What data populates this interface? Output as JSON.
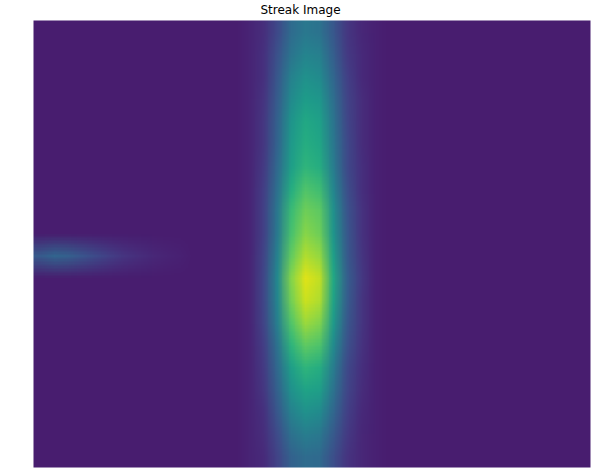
{
  "chart_data": {
    "type": "heatmap",
    "title": "Streak Image",
    "color": "viridis",
    "tick_labels": false,
    "zlim": [
      0,
      100
    ],
    "cells": [
      [
        8,
        8,
        8,
        8,
        8,
        8,
        8,
        8,
        8,
        8,
        8,
        8,
        8,
        8,
        8,
        10,
        13,
        22,
        35,
        40,
        38,
        27,
        16,
        11,
        9,
        8,
        8,
        8,
        8,
        8,
        8,
        8,
        8,
        8,
        8,
        8,
        8,
        8,
        8,
        8
      ],
      [
        8,
        8,
        8,
        8,
        8,
        8,
        8,
        8,
        8,
        8,
        8,
        8,
        8,
        8,
        8,
        10,
        14,
        25,
        39,
        45,
        43,
        30,
        17,
        12,
        9,
        8,
        8,
        8,
        8,
        8,
        8,
        8,
        8,
        8,
        8,
        8,
        8,
        8,
        8,
        8
      ],
      [
        8,
        8,
        8,
        8,
        8,
        8,
        8,
        8,
        8,
        8,
        8,
        8,
        8,
        8,
        8,
        10,
        14,
        27,
        44,
        50,
        48,
        33,
        19,
        12,
        9,
        8,
        8,
        8,
        8,
        8,
        8,
        8,
        8,
        8,
        8,
        8,
        8,
        8,
        8,
        8
      ],
      [
        8,
        8,
        8,
        8,
        8,
        8,
        8,
        8,
        8,
        8,
        8,
        8,
        8,
        8,
        8,
        10,
        15,
        29,
        48,
        55,
        53,
        36,
        20,
        13,
        9,
        8,
        8,
        8,
        8,
        8,
        8,
        8,
        8,
        8,
        8,
        8,
        8,
        8,
        8,
        8
      ],
      [
        8,
        8,
        8,
        8,
        8,
        8,
        8,
        8,
        8,
        8,
        8,
        8,
        8,
        8,
        8,
        10,
        16,
        31,
        52,
        60,
        57,
        39,
        21,
        13,
        9,
        8,
        8,
        8,
        8,
        8,
        8,
        8,
        8,
        8,
        8,
        8,
        8,
        8,
        8,
        8
      ],
      [
        8,
        8,
        8,
        8,
        8,
        8,
        8,
        8,
        8,
        8,
        8,
        8,
        8,
        8,
        8,
        10,
        16,
        32,
        54,
        62,
        59,
        40,
        22,
        13,
        9,
        8,
        8,
        8,
        8,
        8,
        8,
        8,
        8,
        8,
        8,
        8,
        8,
        8,
        8,
        8
      ],
      [
        8,
        8,
        8,
        8,
        8,
        8,
        8,
        8,
        8,
        8,
        8,
        8,
        8,
        8,
        8,
        10,
        17,
        34,
        56,
        65,
        62,
        42,
        22,
        14,
        9,
        8,
        8,
        8,
        8,
        8,
        8,
        8,
        8,
        8,
        8,
        8,
        8,
        8,
        8,
        8
      ],
      [
        8,
        8,
        8,
        8,
        8,
        8,
        8,
        8,
        8,
        8,
        8,
        8,
        8,
        8,
        8,
        10,
        18,
        37,
        62,
        72,
        69,
        46,
        24,
        14,
        9,
        8,
        8,
        8,
        8,
        8,
        8,
        8,
        8,
        8,
        8,
        8,
        8,
        8,
        8,
        8
      ],
      [
        8,
        8,
        8,
        8,
        8,
        8,
        8,
        8,
        8,
        8,
        8,
        8,
        8,
        8,
        8,
        10,
        19,
        40,
        68,
        78,
        75,
        50,
        26,
        15,
        9,
        8,
        8,
        8,
        8,
        8,
        8,
        8,
        8,
        8,
        8,
        8,
        8,
        8,
        8,
        8
      ],
      [
        8,
        8,
        8,
        8,
        8,
        8,
        8,
        8,
        8,
        8,
        8,
        8,
        8,
        8,
        8,
        10,
        19,
        41,
        71,
        82,
        78,
        52,
        27,
        15,
        9,
        8,
        8,
        8,
        8,
        8,
        8,
        8,
        8,
        8,
        8,
        8,
        8,
        8,
        8,
        8
      ],
      [
        28,
        32,
        30,
        26,
        22,
        18,
        15,
        13,
        11,
        10,
        9,
        8,
        8,
        8,
        8,
        10,
        20,
        44,
        76,
        88,
        84,
        56,
        28,
        16,
        9,
        8,
        8,
        8,
        8,
        8,
        8,
        8,
        8,
        8,
        8,
        8,
        8,
        8,
        8,
        8
      ],
      [
        8,
        8,
        8,
        8,
        8,
        8,
        8,
        8,
        8,
        8,
        8,
        8,
        8,
        8,
        8,
        10,
        21,
        47,
        82,
        95,
        91,
        60,
        30,
        17,
        9,
        8,
        8,
        8,
        8,
        8,
        8,
        8,
        8,
        8,
        8,
        8,
        8,
        8,
        8,
        8
      ],
      [
        8,
        8,
        8,
        8,
        8,
        8,
        8,
        8,
        8,
        8,
        8,
        8,
        8,
        8,
        8,
        10,
        21,
        46,
        79,
        92,
        88,
        58,
        29,
        16,
        9,
        8,
        8,
        8,
        8,
        8,
        8,
        8,
        8,
        8,
        8,
        8,
        8,
        8,
        8,
        8
      ],
      [
        8,
        8,
        8,
        8,
        8,
        8,
        8,
        8,
        8,
        8,
        8,
        8,
        8,
        8,
        8,
        10,
        20,
        43,
        73,
        85,
        81,
        54,
        27,
        16,
        9,
        8,
        8,
        8,
        8,
        8,
        8,
        8,
        8,
        8,
        8,
        8,
        8,
        8,
        8,
        8
      ],
      [
        8,
        8,
        8,
        8,
        8,
        8,
        8,
        8,
        8,
        8,
        8,
        8,
        8,
        8,
        8,
        10,
        18,
        38,
        65,
        75,
        72,
        48,
        25,
        15,
        9,
        8,
        8,
        8,
        8,
        8,
        8,
        8,
        8,
        8,
        8,
        8,
        8,
        8,
        8,
        8
      ],
      [
        8,
        8,
        8,
        8,
        8,
        8,
        8,
        8,
        8,
        8,
        8,
        8,
        8,
        8,
        8,
        10,
        17,
        34,
        56,
        65,
        62,
        42,
        22,
        14,
        9,
        8,
        8,
        8,
        8,
        8,
        8,
        8,
        8,
        8,
        8,
        8,
        8,
        8,
        8,
        8
      ],
      [
        8,
        8,
        8,
        8,
        8,
        8,
        8,
        8,
        8,
        8,
        8,
        8,
        8,
        8,
        8,
        10,
        16,
        31,
        51,
        58,
        56,
        38,
        21,
        13,
        9,
        8,
        8,
        8,
        8,
        8,
        8,
        8,
        8,
        8,
        8,
        8,
        8,
        8,
        8,
        8
      ],
      [
        8,
        8,
        8,
        8,
        8,
        8,
        8,
        8,
        8,
        8,
        8,
        8,
        8,
        8,
        8,
        10,
        14,
        27,
        44,
        50,
        48,
        33,
        19,
        12,
        9,
        8,
        8,
        8,
        8,
        8,
        8,
        8,
        8,
        8,
        8,
        8,
        8,
        8,
        8,
        8
      ],
      [
        8,
        8,
        8,
        8,
        8,
        8,
        8,
        8,
        8,
        8,
        8,
        8,
        8,
        8,
        8,
        10,
        13,
        23,
        37,
        42,
        40,
        28,
        17,
        11,
        9,
        8,
        8,
        8,
        8,
        8,
        8,
        8,
        8,
        8,
        8,
        8,
        8,
        8,
        8,
        8
      ],
      [
        8,
        8,
        8,
        8,
        8,
        8,
        8,
        8,
        8,
        8,
        8,
        8,
        8,
        8,
        8,
        10,
        12,
        20,
        31,
        35,
        34,
        24,
        15,
        11,
        9,
        8,
        8,
        8,
        8,
        8,
        8,
        8,
        8,
        8,
        8,
        8,
        8,
        8,
        8,
        8
      ]
    ]
  }
}
